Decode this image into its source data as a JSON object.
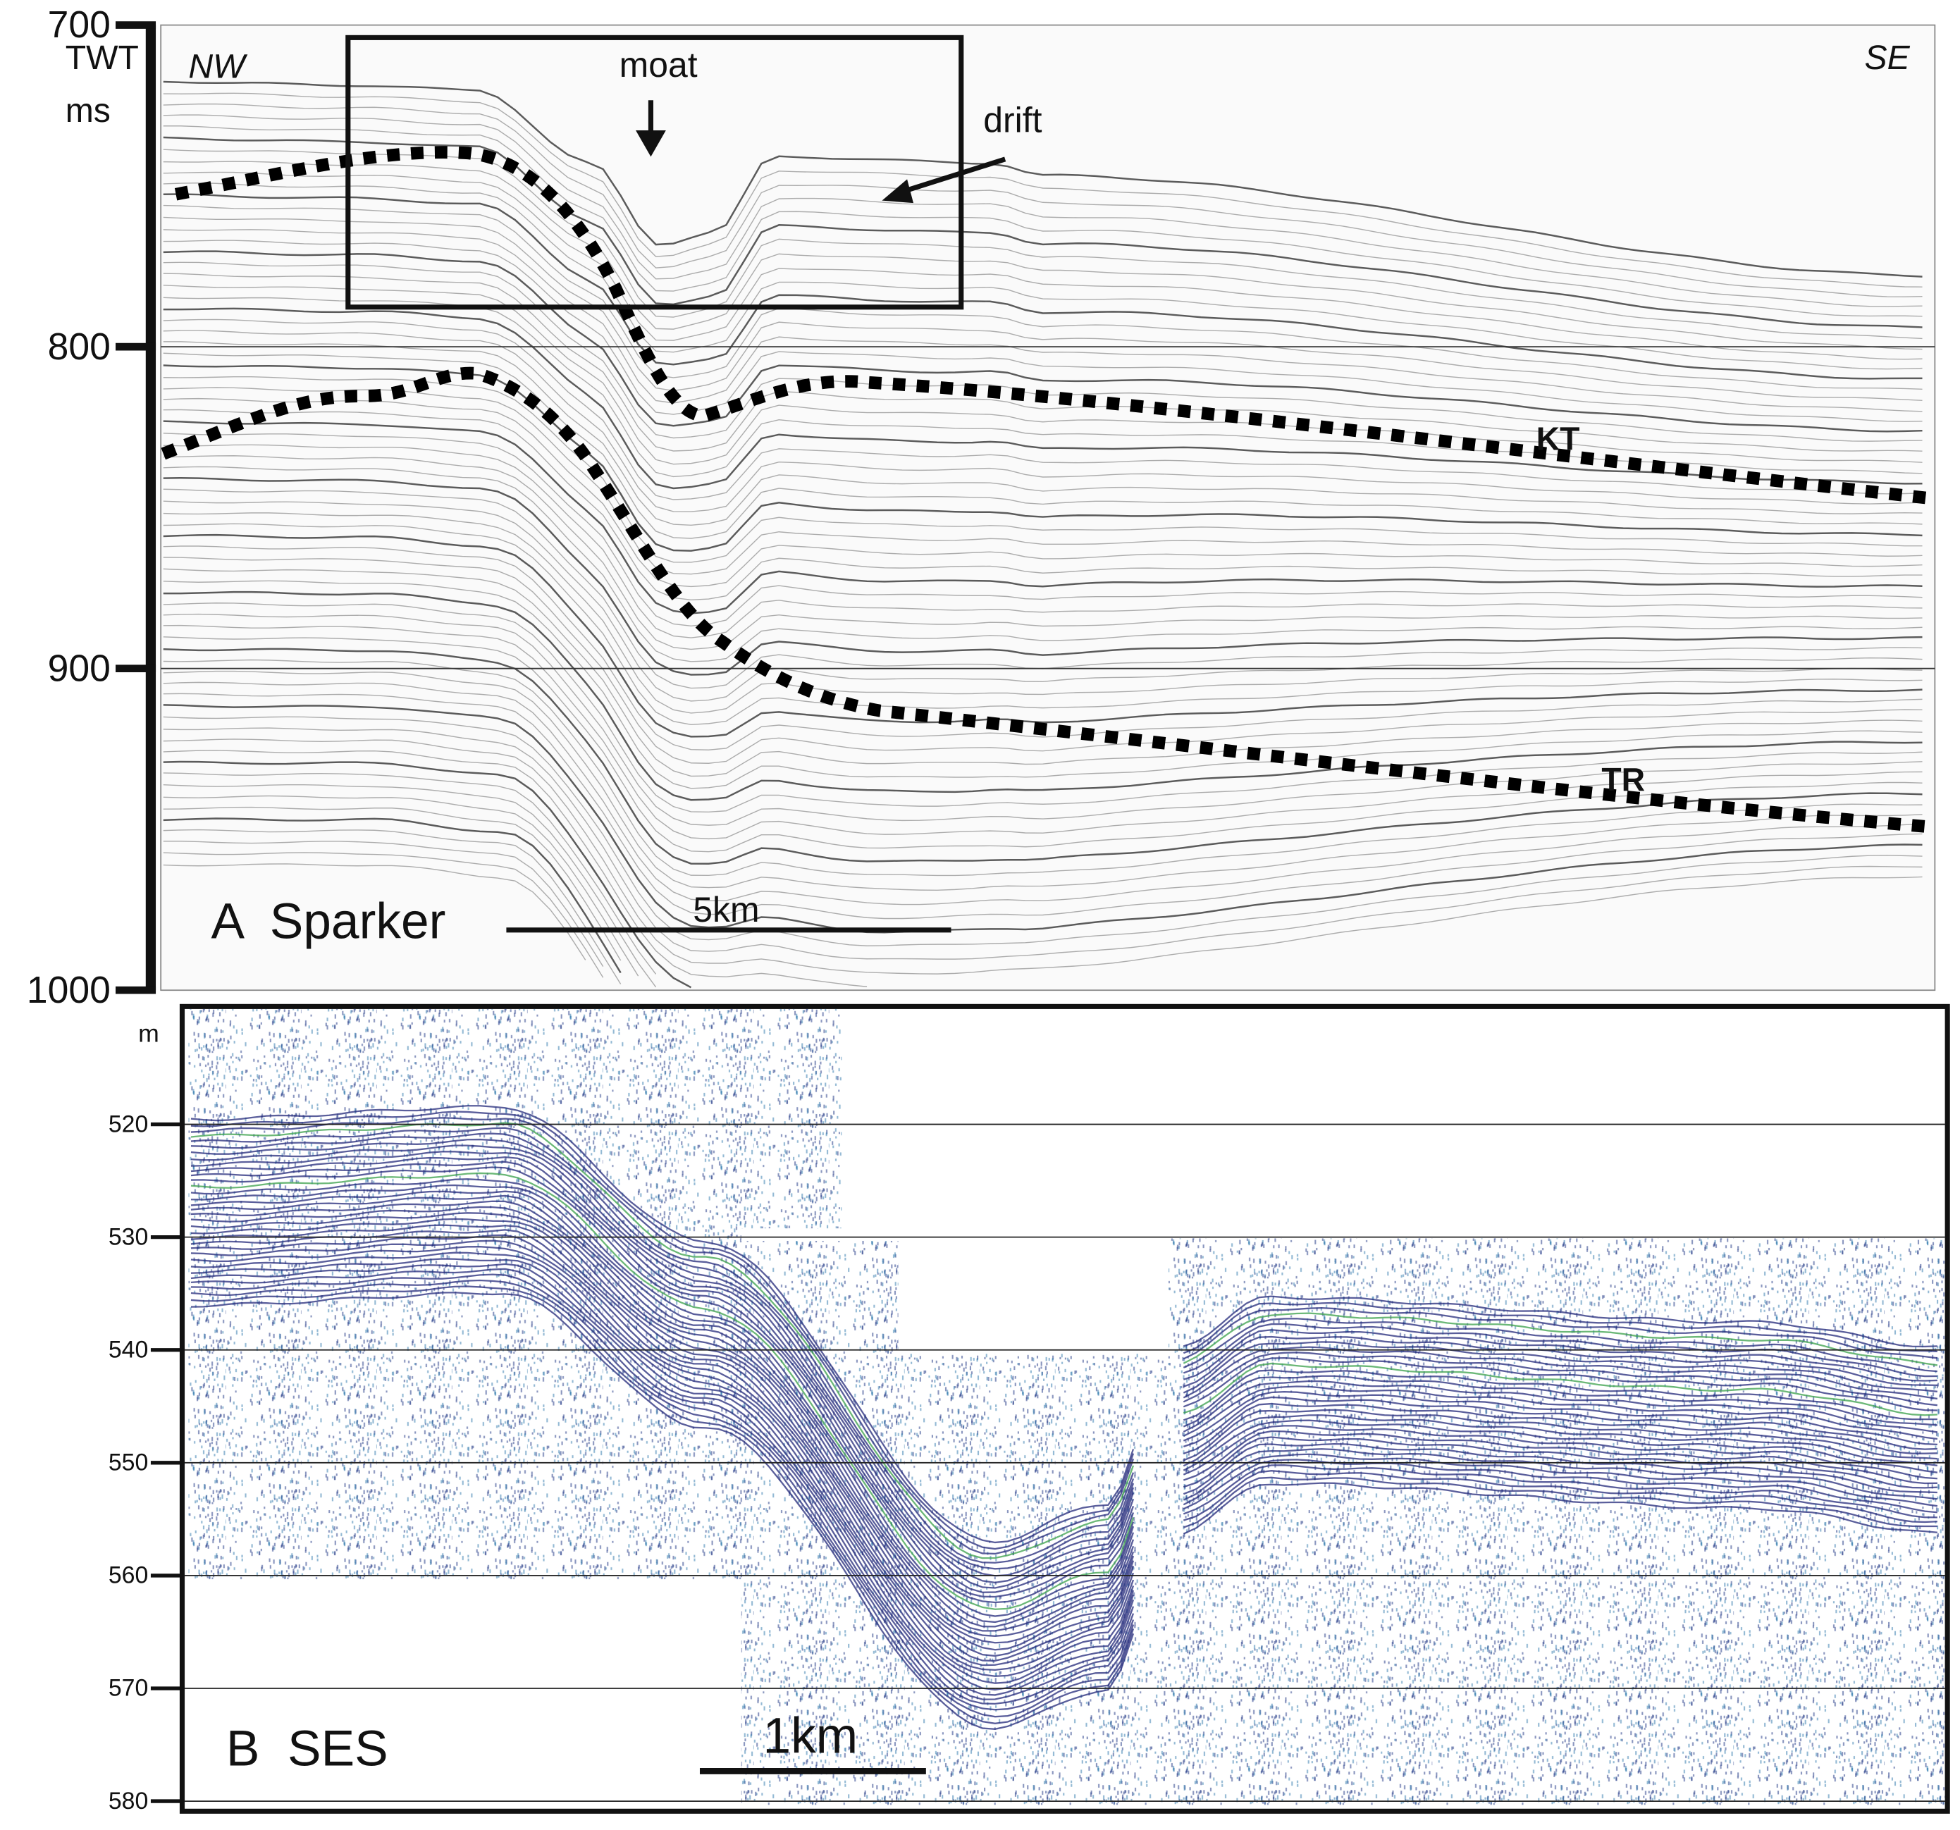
{
  "panel_a": {
    "axis_label_top": "TWT",
    "axis_label_bottom": "ms",
    "ylim": [
      700,
      1000
    ],
    "yticks": [
      700,
      800,
      900,
      1000
    ],
    "left_label": "NW",
    "right_label": "SE",
    "annotations": [
      "moat",
      "drift",
      "KT",
      "TR"
    ],
    "panel_label": "A  Sparker",
    "scale_label": "5km"
  },
  "panel_b": {
    "axis_label": "m",
    "ylim": [
      510,
      580
    ],
    "yticks": [
      520,
      530,
      540,
      550,
      560,
      570,
      580
    ],
    "panel_label": "B  SES",
    "scale_label": "1km"
  }
}
